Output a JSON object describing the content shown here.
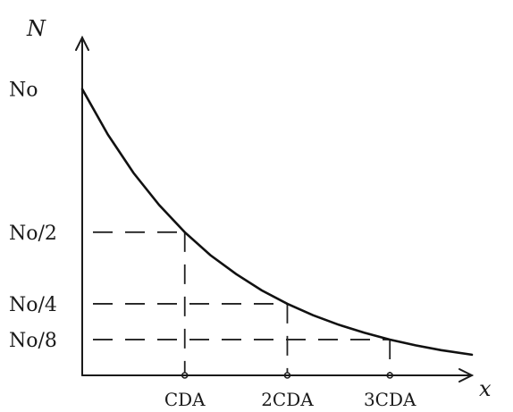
{
  "chart_data": {
    "type": "line",
    "title": "",
    "xlabel": "x",
    "ylabel": "N",
    "x_tick_labels": [
      "CDA",
      "2CDA",
      "3CDA"
    ],
    "y_tick_labels": [
      "No",
      "No/2",
      "No/4",
      "No/8"
    ],
    "x_tick_values": [
      1,
      2,
      3
    ],
    "y_tick_values": [
      1,
      0.5,
      0.25,
      0.125
    ],
    "xlim": [
      0,
      3.8
    ],
    "ylim": [
      0,
      1.18
    ],
    "series": [
      {
        "x": [
          0,
          0.25,
          0.5,
          0.75,
          1,
          1.25,
          1.5,
          1.75,
          2,
          2.25,
          2.5,
          2.75,
          3,
          3.25,
          3.5,
          3.8
        ],
        "values": [
          1,
          0.841,
          0.707,
          0.595,
          0.5,
          0.42,
          0.354,
          0.297,
          0.25,
          0.21,
          0.177,
          0.149,
          0.125,
          0.105,
          0.088,
          0.072
        ]
      }
    ],
    "guides": [
      {
        "x": 1,
        "y": 0.5
      },
      {
        "x": 2,
        "y": 0.25
      },
      {
        "x": 3,
        "y": 0.125
      }
    ],
    "grid": false,
    "legend": "none"
  }
}
